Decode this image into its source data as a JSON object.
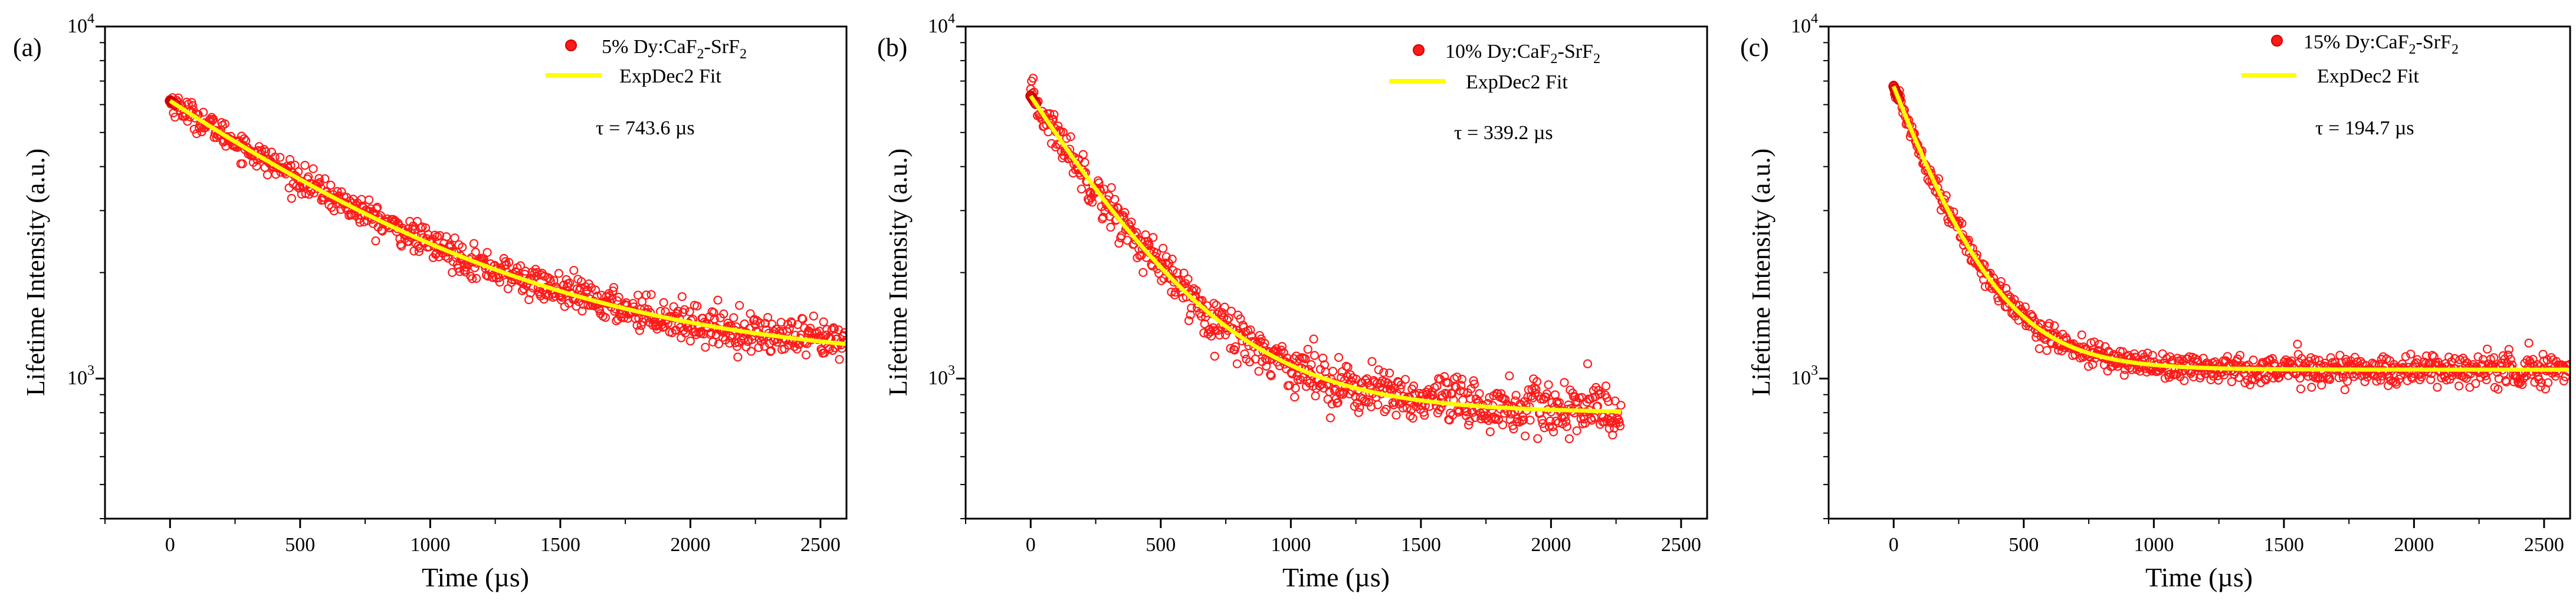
{
  "colors": {
    "points": "#ff1a1a",
    "points_stroke": "#cc0000",
    "fit": "#ffff00",
    "axis": "#000000"
  },
  "chart_data": [
    {
      "type": "scatter",
      "panel_label": "(a)",
      "xlabel": "Time (µs)",
      "ylabel": "Lifetime Intensity (a.u.)",
      "x_scale": "linear",
      "y_scale": "log",
      "xlim": [
        -250,
        2600
      ],
      "ylim": [
        400,
        10000
      ],
      "xticks": [
        0,
        500,
        1000,
        1500,
        2000,
        2500
      ],
      "yticks": [
        1000,
        10000
      ],
      "ytick_labels": [
        {
          "base": "10",
          "exp": "3"
        },
        {
          "base": "10",
          "exp": "4"
        }
      ],
      "legend": [
        {
          "label_parts": [
            "5% Dy:CaF",
            "2",
            "-SrF",
            "2"
          ],
          "symbol": "circle"
        },
        {
          "label": "ExpDec2 Fit",
          "symbol": "line"
        }
      ],
      "annotation": "τ = 743.6 µs",
      "fit_model": {
        "A1": 5050,
        "tau": 743.6,
        "y0": 1100
      },
      "data_x_range": [
        0,
        2600
      ],
      "noise_spread": 0.04,
      "series": [
        {
          "name": "5% Dy:CaF2-SrF2",
          "x": [
            0,
            250,
            500,
            750,
            1000,
            1250,
            1500,
            1750,
            2000,
            2250,
            2500,
            2600
          ],
          "y": [
            6150,
            4940,
            3980,
            3250,
            2680,
            2240,
            1900,
            1640,
            1440,
            1290,
            1160,
            1130
          ]
        },
        {
          "name": "ExpDec2 Fit",
          "x": [
            0,
            500,
            1000,
            1500,
            2000,
            2500,
            2600
          ],
          "y": [
            6150,
            3990,
            2660,
            1860,
            1420,
            1180,
            1150
          ]
        }
      ]
    },
    {
      "type": "scatter",
      "panel_label": "(b)",
      "xlabel": "Time (µs)",
      "ylabel": "Lifetime Intensity (a.u.)",
      "x_scale": "linear",
      "y_scale": "log",
      "xlim": [
        -250,
        2600
      ],
      "ylim": [
        400,
        10000
      ],
      "xticks": [
        0,
        500,
        1000,
        1500,
        2000,
        2500
      ],
      "yticks": [
        1000,
        10000
      ],
      "ytick_labels": [
        {
          "base": "10",
          "exp": "3"
        },
        {
          "base": "10",
          "exp": "4"
        }
      ],
      "legend": [
        {
          "label_parts": [
            "10% Dy:CaF",
            "2",
            "-SrF",
            "2"
          ],
          "symbol": "circle"
        },
        {
          "label": "ExpDec2 Fit",
          "symbol": "line"
        }
      ],
      "annotation": "τ = 339.2  µs",
      "fit_model": {
        "A1": 5550,
        "tau": 339.2,
        "y0": 800
      },
      "data_x_range": [
        0,
        2270
      ],
      "noise_spread": 0.06,
      "series": [
        {
          "name": "10% Dy:CaF2-SrF2",
          "x": [
            0,
            250,
            500,
            750,
            1000,
            1250,
            1500,
            1750,
            2000,
            2270
          ],
          "y": [
            6350,
            3450,
            2000,
            1320,
            1000,
            880,
            830,
            810,
            800,
            800
          ]
        },
        {
          "name": "ExpDec2 Fit",
          "x": [
            0,
            500,
            1000,
            1500,
            2000,
            2270
          ],
          "y": [
            6350,
            2050,
            1020,
            850,
            810,
            800
          ]
        }
      ]
    },
    {
      "type": "scatter",
      "panel_label": "(c)",
      "xlabel": "Time (µs)",
      "ylabel": "Lifetime Intensity (a.u.)",
      "x_scale": "linear",
      "y_scale": "log",
      "xlim": [
        -250,
        2600
      ],
      "ylim": [
        400,
        10000
      ],
      "xticks": [
        0,
        500,
        1000,
        1500,
        2000,
        2500
      ],
      "yticks": [
        1000,
        10000
      ],
      "ytick_labels": [
        {
          "base": "10",
          "exp": "3"
        },
        {
          "base": "10",
          "exp": "4"
        }
      ],
      "legend": [
        {
          "label_parts": [
            "15% Dy:CaF",
            "2",
            "-SrF",
            "2"
          ],
          "symbol": "circle"
        },
        {
          "label": "ExpDec2 Fit",
          "symbol": "line"
        }
      ],
      "annotation": "τ = 194.7  µs",
      "fit_model": {
        "A1": 5700,
        "tau": 194.7,
        "y0": 1060
      },
      "data_x_range": [
        0,
        2600
      ],
      "noise_spread": 0.035,
      "series": [
        {
          "name": "15% Dy:CaF2-SrF2",
          "x": [
            0,
            250,
            500,
            750,
            1000,
            1500,
            2000,
            2600
          ],
          "y": [
            6750,
            2620,
            1430,
            1160,
            1090,
            1062,
            1060,
            1060
          ]
        },
        {
          "name": "ExpDec2 Fit",
          "x": [
            0,
            250,
            500,
            750,
            1000,
            1500,
            2000,
            2600
          ],
          "y": [
            6760,
            2610,
            1440,
            1150,
            1090,
            1062,
            1060,
            1060
          ]
        }
      ]
    }
  ]
}
